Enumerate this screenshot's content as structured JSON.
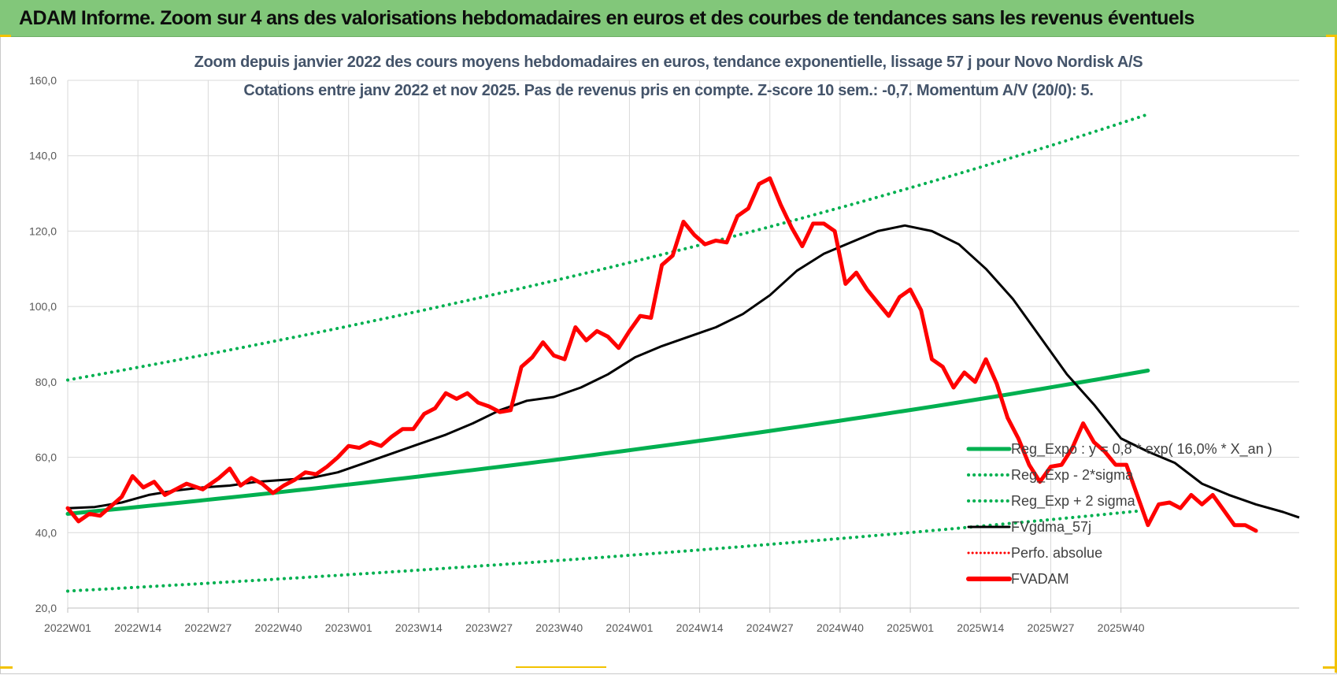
{
  "banner": {
    "text": "ADAM Informe. Zoom sur 4 ans des valorisations hebdomadaires en euros et des courbes de tendances sans les revenus éventuels"
  },
  "colors": {
    "banner_bg": "#82c77a",
    "trend": "#00b050",
    "smooth": "#000000",
    "perfo": "#ff0000",
    "price": "#ff0000",
    "title_text": "#44546a",
    "grid": "#d9d9d9",
    "accent_corner": "#f2c200"
  },
  "chart_data": {
    "type": "line",
    "title_line1": "Zoom depuis janvier 2022 des cours moyens hebdomadaires en euros, tendance exponentielle, lissage 57 j pour Novo Nordisk A/S",
    "title_line2": "Cotations entre janv 2022 et nov 2025. Pas de revenus pris en compte. Z-score 10 sem.: -0,7. Momentum A/V (20/0): 5.",
    "ylim": [
      20,
      160
    ],
    "yticks": [
      "20,0",
      "40,0",
      "60,0",
      "80,0",
      "100,0",
      "120,0",
      "140,0",
      "160,0"
    ],
    "xticks": [
      "2022W01",
      "2022W14",
      "2022W27",
      "2022W40",
      "2023W01",
      "2023W14",
      "2023W27",
      "2023W40",
      "2024W01",
      "2024W14",
      "2024W27",
      "2024W40",
      "2025W01",
      "2025W14",
      "2025W27",
      "2025W40"
    ],
    "grid": true,
    "legend_position": "bottom-right",
    "legend": [
      {
        "label": "Reg_Expo : y = 0,8 * exp( 16,0% * X_an )",
        "style": "solid-green"
      },
      {
        "label": "Reg_Exp - 2*sigma",
        "style": "dotted-green"
      },
      {
        "label": "Reg_Exp + 2 sigma",
        "style": "dotted-green"
      },
      {
        "label": "FVgdma_57j",
        "style": "solid-black"
      },
      {
        "label": "Perfo. absolue",
        "style": "dotted-red"
      },
      {
        "label": "FVADAM",
        "style": "thick-red"
      }
    ],
    "series": [
      {
        "name": "Reg_Expo : y = 0,8 * exp( 16,0% * X_an )",
        "points": [
          [
            0,
            45.0
          ],
          [
            200,
            83.0
          ]
        ]
      },
      {
        "name": "Reg_Exp - 2*sigma",
        "points": [
          [
            0,
            24.5
          ],
          [
            200,
            46.0
          ]
        ]
      },
      {
        "name": "Reg_Exp + 2 sigma",
        "points": [
          [
            0,
            80.5
          ],
          [
            200,
            151.0
          ]
        ]
      },
      {
        "name": "FVgdma_57j",
        "points": [
          [
            0,
            46.5
          ],
          [
            5,
            46.8
          ],
          [
            10,
            48.0
          ],
          [
            15,
            50.0
          ],
          [
            20,
            51.2
          ],
          [
            25,
            52.0
          ],
          [
            30,
            52.5
          ],
          [
            35,
            53.5
          ],
          [
            40,
            54.0
          ],
          [
            45,
            54.5
          ],
          [
            50,
            56.0
          ],
          [
            55,
            58.5
          ],
          [
            60,
            61.0
          ],
          [
            65,
            63.5
          ],
          [
            70,
            66.0
          ],
          [
            75,
            69.0
          ],
          [
            80,
            72.5
          ],
          [
            85,
            75.0
          ],
          [
            90,
            76.0
          ],
          [
            95,
            78.5
          ],
          [
            100,
            82.0
          ],
          [
            105,
            86.5
          ],
          [
            110,
            89.5
          ],
          [
            115,
            92.0
          ],
          [
            120,
            94.5
          ],
          [
            125,
            98.0
          ],
          [
            130,
            103.0
          ],
          [
            135,
            109.5
          ],
          [
            140,
            114.0
          ],
          [
            145,
            117.0
          ],
          [
            150,
            120.0
          ],
          [
            155,
            121.5
          ],
          [
            160,
            120.0
          ],
          [
            165,
            116.5
          ],
          [
            170,
            110.0
          ],
          [
            175,
            102.0
          ],
          [
            180,
            92.0
          ],
          [
            185,
            82.0
          ],
          [
            190,
            74.0
          ],
          [
            195,
            65.0
          ],
          [
            200,
            61.5
          ],
          [
            205,
            58.5
          ],
          [
            210,
            53.0
          ],
          [
            215,
            50.0
          ],
          [
            220,
            47.5
          ],
          [
            225,
            45.5
          ],
          [
            228,
            44.0
          ]
        ]
      },
      {
        "name": "FVADAM",
        "points": [
          [
            0,
            46.5
          ],
          [
            2,
            43.0
          ],
          [
            4,
            45.0
          ],
          [
            6,
            44.5
          ],
          [
            8,
            47.0
          ],
          [
            10,
            49.5
          ],
          [
            12,
            55.0
          ],
          [
            14,
            52.0
          ],
          [
            16,
            53.5
          ],
          [
            18,
            50.0
          ],
          [
            20,
            51.5
          ],
          [
            22,
            53.0
          ],
          [
            25,
            51.5
          ],
          [
            28,
            54.5
          ],
          [
            30,
            57.0
          ],
          [
            32,
            52.5
          ],
          [
            34,
            54.5
          ],
          [
            36,
            53.0
          ],
          [
            38,
            50.5
          ],
          [
            40,
            52.5
          ],
          [
            42,
            54.0
          ],
          [
            44,
            56.0
          ],
          [
            46,
            55.5
          ],
          [
            48,
            57.5
          ],
          [
            50,
            60.0
          ],
          [
            52,
            63.0
          ],
          [
            54,
            62.5
          ],
          [
            56,
            64.0
          ],
          [
            58,
            63.0
          ],
          [
            60,
            65.5
          ],
          [
            62,
            67.5
          ],
          [
            64,
            67.5
          ],
          [
            66,
            71.5
          ],
          [
            68,
            73.0
          ],
          [
            70,
            77.0
          ],
          [
            72,
            75.5
          ],
          [
            74,
            77.0
          ],
          [
            76,
            74.5
          ],
          [
            78,
            73.5
          ],
          [
            80,
            72.0
          ],
          [
            82,
            72.5
          ],
          [
            84,
            84.0
          ],
          [
            86,
            86.5
          ],
          [
            88,
            90.5
          ],
          [
            90,
            87.0
          ],
          [
            92,
            86.0
          ],
          [
            94,
            94.5
          ],
          [
            96,
            91.0
          ],
          [
            98,
            93.5
          ],
          [
            100,
            92.0
          ],
          [
            102,
            89.0
          ],
          [
            104,
            93.5
          ],
          [
            106,
            97.5
          ],
          [
            108,
            97.0
          ],
          [
            110,
            111.0
          ],
          [
            112,
            113.5
          ],
          [
            114,
            122.5
          ],
          [
            116,
            119.0
          ],
          [
            118,
            116.5
          ],
          [
            120,
            117.5
          ],
          [
            122,
            117.0
          ],
          [
            124,
            124.0
          ],
          [
            126,
            126.0
          ],
          [
            128,
            132.5
          ],
          [
            130,
            134.0
          ],
          [
            132,
            127.0
          ],
          [
            134,
            121.0
          ],
          [
            136,
            116.0
          ],
          [
            138,
            122.0
          ],
          [
            140,
            122.0
          ],
          [
            142,
            120.0
          ],
          [
            144,
            106.0
          ],
          [
            146,
            109.0
          ],
          [
            148,
            104.5
          ],
          [
            150,
            101.0
          ],
          [
            152,
            97.5
          ],
          [
            154,
            102.5
          ],
          [
            156,
            104.5
          ],
          [
            158,
            99.0
          ],
          [
            160,
            86.0
          ],
          [
            162,
            84.0
          ],
          [
            164,
            78.5
          ],
          [
            166,
            82.5
          ],
          [
            168,
            80.0
          ],
          [
            170,
            86.0
          ],
          [
            172,
            79.5
          ],
          [
            174,
            70.5
          ],
          [
            176,
            65.0
          ],
          [
            178,
            58.0
          ],
          [
            180,
            53.5
          ],
          [
            182,
            57.5
          ],
          [
            184,
            58.0
          ],
          [
            186,
            62.5
          ],
          [
            188,
            69.0
          ],
          [
            190,
            64.0
          ],
          [
            192,
            61.5
          ],
          [
            194,
            58.0
          ],
          [
            196,
            58.0
          ],
          [
            198,
            50.0
          ],
          [
            200,
            42.0
          ],
          [
            202,
            47.5
          ],
          [
            204,
            48.0
          ],
          [
            206,
            46.5
          ],
          [
            208,
            50.0
          ],
          [
            210,
            47.5
          ],
          [
            212,
            50.0
          ],
          [
            214,
            46.0
          ],
          [
            216,
            42.0
          ],
          [
            218,
            42.0
          ],
          [
            220,
            40.5
          ]
        ]
      }
    ]
  }
}
